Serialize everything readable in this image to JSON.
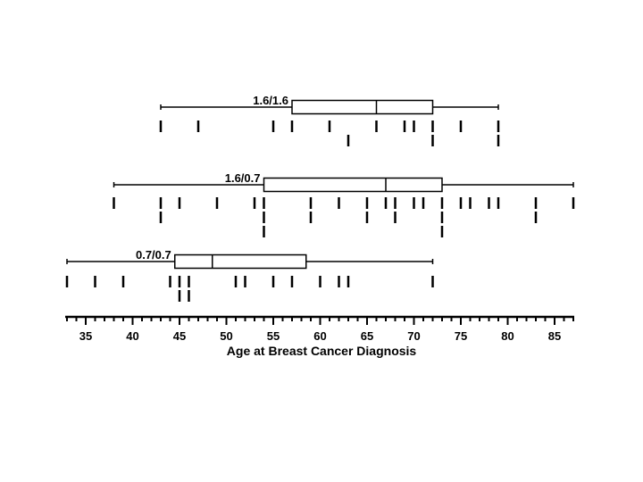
{
  "chart_data": {
    "type": "box",
    "xlabel": "Age at Breast Cancer Diagnosis",
    "xlim": [
      33,
      87
    ],
    "ticks": [
      35,
      40,
      45,
      50,
      55,
      60,
      65,
      70,
      75,
      80,
      85
    ],
    "series": [
      {
        "name": "1.6/1.6",
        "whisker_low": 43,
        "q1": 57,
        "median": 66,
        "q3": 72,
        "whisker_high": 79,
        "points": [
          [
            43,
            47,
            55,
            57,
            61,
            66,
            69,
            70,
            72,
            75,
            79
          ],
          [
            63,
            72,
            79
          ]
        ]
      },
      {
        "name": "1.6/0.7",
        "whisker_low": 38,
        "q1": 54,
        "median": 67,
        "q3": 73,
        "whisker_high": 87,
        "points": [
          [
            38,
            43,
            45,
            49,
            53,
            54,
            59,
            62,
            65,
            67,
            68,
            70,
            71,
            73,
            75,
            76,
            78,
            79,
            83,
            87
          ],
          [
            43,
            54,
            59,
            65,
            68,
            73,
            83
          ],
          [
            54,
            73
          ]
        ]
      },
      {
        "name": "0.7/0.7",
        "whisker_low": 33,
        "q1": 44.5,
        "median": 48.5,
        "q3": 58.5,
        "whisker_high": 72,
        "points": [
          [
            33,
            36,
            39,
            44,
            45,
            46,
            51,
            52,
            55,
            57,
            60,
            62,
            63,
            72
          ],
          [
            45,
            46
          ]
        ]
      }
    ]
  }
}
